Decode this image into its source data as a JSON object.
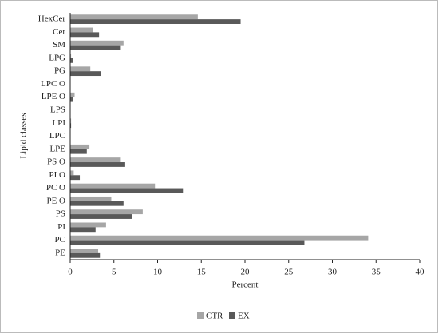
{
  "chart_data": {
    "type": "hbar",
    "x_label": "Percent",
    "y_label": "Lipid classes",
    "categories": [
      "HexCer",
      "Cer",
      "SM",
      "LPG",
      "PG",
      "LPC O",
      "LPE O",
      "LPS",
      "LPI",
      "LPC",
      "LPE",
      "PS O",
      "PI O",
      "PC O",
      "PE O",
      "PS",
      "PI",
      "PC",
      "PE"
    ],
    "series": [
      {
        "name": "CTR",
        "color": "#a6a6a6",
        "values": [
          14.6,
          2.6,
          6.1,
          0.1,
          2.3,
          0,
          0.5,
          0,
          0.1,
          0,
          2.2,
          5.7,
          0.4,
          9.7,
          4.7,
          8.3,
          4.1,
          34.1,
          3.2
        ]
      },
      {
        "name": "EX",
        "color": "#595959",
        "values": [
          19.5,
          3.3,
          5.7,
          0.3,
          3.5,
          0,
          0.3,
          0,
          0.1,
          0,
          1.9,
          6.2,
          1.1,
          12.9,
          6.1,
          7.1,
          2.9,
          26.8,
          3.4
        ]
      }
    ],
    "xlim": [
      0,
      40
    ],
    "xticks": [
      0,
      5,
      10,
      15,
      20,
      25,
      30,
      35,
      40
    ]
  }
}
